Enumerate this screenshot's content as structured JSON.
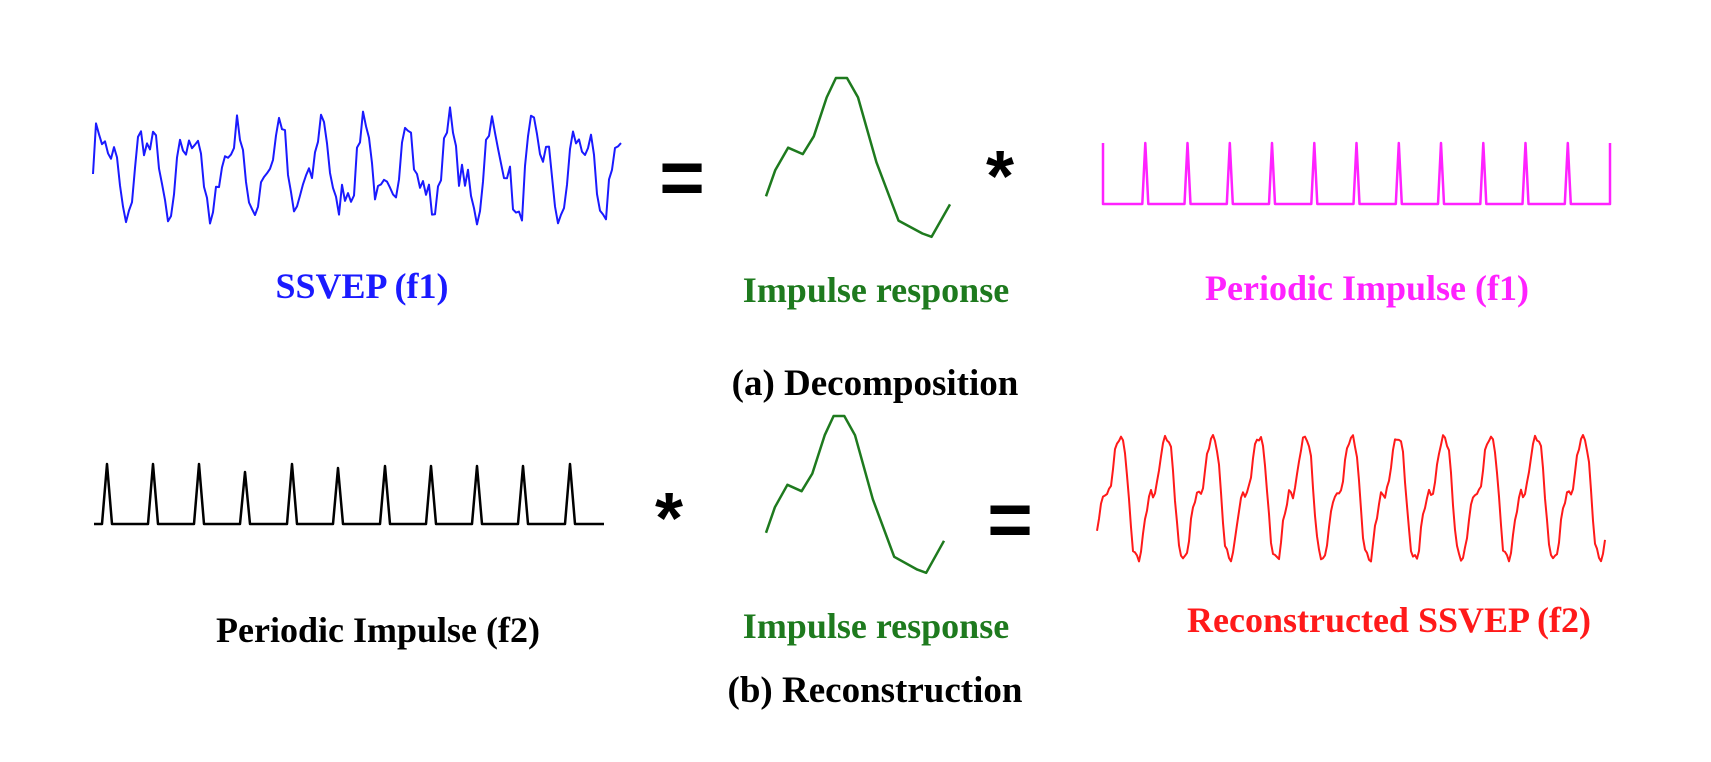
{
  "decomposition": {
    "caption": "(a) Decomposition",
    "ssvep_label": "SSVEP (f1)",
    "impulse_response_label": "Impulse response",
    "periodic_impulse_label": "Periodic Impulse (f1)",
    "operator_equals": "=",
    "operator_convolve": "*"
  },
  "reconstruction": {
    "caption": "(b) Reconstruction",
    "periodic_impulse_label": "Periodic Impulse (f2)",
    "impulse_response_label": "Impulse response",
    "reconstructed_label": "Reconstructed SSVEP (f2)",
    "operator_convolve": "*",
    "operator_equals": "="
  },
  "colors": {
    "ssvep_f1": "#1a1aff",
    "impulse_response": "#1e7a1e",
    "periodic_impulse_f1": "#ff22ff",
    "periodic_impulse_f2": "#000000",
    "reconstructed_f2": "#ff1a1a"
  }
}
